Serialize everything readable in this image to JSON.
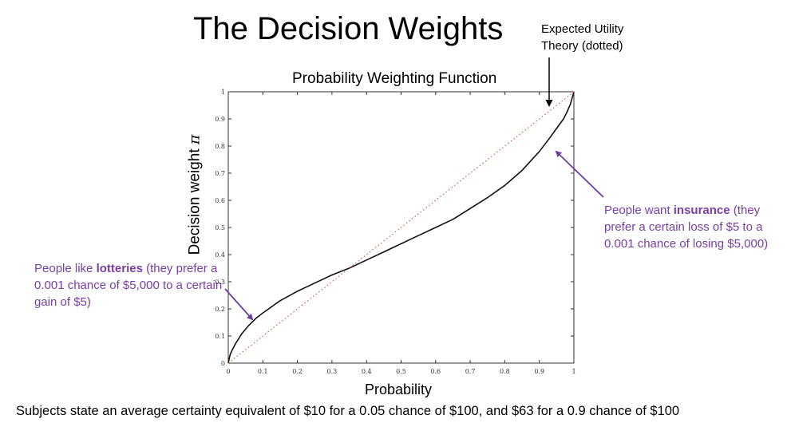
{
  "slide": {
    "title": "The Decision Weights",
    "eu_label": "Expected Utility Theory (dotted)",
    "annotation_left": {
      "prefix": "People like ",
      "bold": "lotteries",
      "suffix": " (they prefer a 0.001 chance of $5,000 to a certain gain of $5)"
    },
    "annotation_right": {
      "prefix": "People want ",
      "bold": "insurance",
      "suffix": " (they prefer a certain loss of $5 to a 0.001 chance of losing $5,000)"
    },
    "footer": "Subjects state an average certainty equivalent of $10 for a 0.05 chance of $100, and $63 for a 0.9 chance of $100",
    "colors": {
      "annotation": "#7a3fa6",
      "dotted_line": "#c44a2a",
      "curve": "#111111"
    }
  },
  "chart_data": {
    "type": "line",
    "title": "Probability Weighting Function",
    "xlabel": "Probability",
    "ylabel": "Decision weight",
    "ylabel_symbol": "π",
    "xlim": [
      0,
      1
    ],
    "ylim": [
      0,
      1
    ],
    "xticks": [
      "0",
      "0.1",
      "0.2",
      "0.3",
      "0.4",
      "0.5",
      "0.6",
      "0.7",
      "0.8",
      "0.9",
      "1"
    ],
    "yticks": [
      "0",
      "0.1",
      "0.2",
      "0.3",
      "0.4",
      "0.5",
      "0.6",
      "0.7",
      "0.8",
      "0.9",
      "1"
    ],
    "grid": false,
    "series": [
      {
        "style": "solid",
        "x": [
          0,
          0.005,
          0.01,
          0.02,
          0.04,
          0.06,
          0.08,
          0.1,
          0.15,
          0.2,
          0.25,
          0.3,
          0.35,
          0.4,
          0.45,
          0.5,
          0.55,
          0.6,
          0.65,
          0.7,
          0.75,
          0.8,
          0.85,
          0.9,
          0.93,
          0.95,
          0.97,
          0.98,
          0.99,
          1
        ],
        "y": [
          0,
          0.03,
          0.045,
          0.07,
          0.11,
          0.14,
          0.165,
          0.185,
          0.23,
          0.265,
          0.295,
          0.325,
          0.35,
          0.38,
          0.41,
          0.44,
          0.47,
          0.5,
          0.53,
          0.57,
          0.61,
          0.655,
          0.71,
          0.78,
          0.83,
          0.865,
          0.9,
          0.925,
          0.955,
          1
        ]
      },
      {
        "style": "dotted",
        "x": [
          0,
          1
        ],
        "y": [
          0,
          1
        ]
      }
    ]
  }
}
